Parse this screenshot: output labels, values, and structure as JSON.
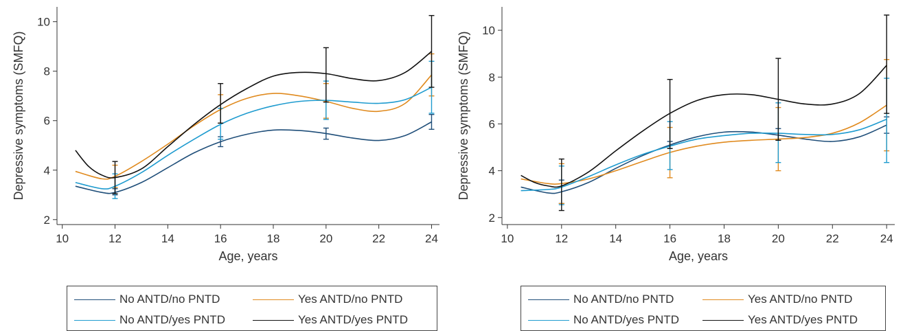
{
  "colors": {
    "no_antd_no_pntd": "#1f4e79",
    "yes_antd_no_pntd": "#e08a1e",
    "no_antd_yes_pntd": "#1e9bcf",
    "yes_antd_yes_pntd": "#111111",
    "axis": "#333333"
  },
  "legend": [
    {
      "label": "No ANTD/no PNTD",
      "color": "#1f4e79"
    },
    {
      "label": "Yes ANTD/no PNTD",
      "color": "#e08a1e"
    },
    {
      "label": "No ANTD/yes PNTD",
      "color": "#1e9bcf"
    },
    {
      "label": "Yes ANTD/yes PNTD",
      "color": "#111111"
    }
  ],
  "chart_data": [
    {
      "type": "line",
      "xlabel": "Age, years",
      "ylabel": "Depressive symptoms (SMFQ)",
      "xlim": [
        9.8,
        24.3
      ],
      "ylim": [
        1.8,
        10.6
      ],
      "xticks": [
        10,
        12,
        14,
        16,
        18,
        20,
        22,
        24
      ],
      "yticks": [
        2,
        4,
        6,
        8,
        10
      ],
      "grid": false,
      "legend_position": "bottom",
      "series": [
        {
          "name": "No ANTD/no PNTD",
          "color": "#1f4e79",
          "x": [
            10.5,
            11.5,
            12,
            13,
            14,
            15,
            16,
            17,
            18,
            19,
            20,
            21,
            22,
            23,
            24
          ],
          "y": [
            3.35,
            3.1,
            3.1,
            3.5,
            4.1,
            4.7,
            5.15,
            5.45,
            5.62,
            5.6,
            5.48,
            5.3,
            5.2,
            5.4,
            5.95
          ],
          "errorbars": [
            {
              "x": 12,
              "low": 3.0,
              "high": 3.25
            },
            {
              "x": 16,
              "low": 4.95,
              "high": 5.35
            },
            {
              "x": 20,
              "low": 5.25,
              "high": 5.7
            },
            {
              "x": 24,
              "low": 5.65,
              "high": 6.25
            }
          ]
        },
        {
          "name": "Yes ANTD/no PNTD",
          "color": "#e08a1e",
          "x": [
            10.5,
            11.5,
            12,
            13,
            14,
            15,
            16,
            17,
            18,
            19,
            20,
            21,
            22,
            23,
            24
          ],
          "y": [
            3.95,
            3.65,
            3.75,
            4.35,
            5.05,
            5.8,
            6.45,
            6.9,
            7.1,
            7.0,
            6.78,
            6.5,
            6.38,
            6.7,
            7.85
          ],
          "errorbars": [
            {
              "x": 12,
              "low": 3.3,
              "high": 4.2
            },
            {
              "x": 16,
              "low": 5.9,
              "high": 7.05
            },
            {
              "x": 20,
              "low": 6.1,
              "high": 7.5
            },
            {
              "x": 24,
              "low": 7.0,
              "high": 8.7
            }
          ]
        },
        {
          "name": "No ANTD/yes PNTD",
          "color": "#1e9bcf",
          "x": [
            10.5,
            11.5,
            12,
            13,
            14,
            15,
            16,
            17,
            18,
            19,
            20,
            21,
            22,
            23,
            24
          ],
          "y": [
            3.5,
            3.25,
            3.35,
            3.9,
            4.6,
            5.25,
            5.85,
            6.3,
            6.6,
            6.78,
            6.82,
            6.75,
            6.7,
            6.85,
            7.35
          ],
          "errorbars": [
            {
              "x": 12,
              "low": 2.85,
              "high": 3.85
            },
            {
              "x": 16,
              "low": 5.25,
              "high": 6.5
            },
            {
              "x": 20,
              "low": 6.05,
              "high": 7.6
            },
            {
              "x": 24,
              "low": 6.3,
              "high": 8.4
            }
          ]
        },
        {
          "name": "Yes ANTD/yes PNTD",
          "color": "#111111",
          "x": [
            10.5,
            11,
            11.5,
            12,
            13,
            14,
            15,
            16,
            17,
            18,
            19,
            20,
            21,
            22,
            23,
            24
          ],
          "y": [
            4.8,
            4.15,
            3.8,
            3.7,
            4.05,
            4.95,
            5.85,
            6.65,
            7.3,
            7.8,
            7.95,
            7.9,
            7.7,
            7.62,
            7.95,
            8.8
          ],
          "errorbars": [
            {
              "x": 12,
              "low": 3.05,
              "high": 4.35
            },
            {
              "x": 16,
              "low": 5.9,
              "high": 7.5
            },
            {
              "x": 20,
              "low": 6.75,
              "high": 8.95
            },
            {
              "x": 24,
              "low": 7.35,
              "high": 10.25
            }
          ]
        }
      ]
    },
    {
      "type": "line",
      "xlabel": "Age, years",
      "ylabel": "Depressive symptoms (SMFQ)",
      "xlim": [
        9.8,
        24.3
      ],
      "ylim": [
        1.7,
        11.0
      ],
      "xticks": [
        10,
        12,
        14,
        16,
        18,
        20,
        22,
        24
      ],
      "yticks": [
        2,
        4,
        6,
        8,
        10
      ],
      "grid": false,
      "legend_position": "bottom",
      "series": [
        {
          "name": "No ANTD/no PNTD",
          "color": "#1f4e79",
          "x": [
            10.5,
            11.5,
            12,
            13,
            14,
            15,
            16,
            17,
            18,
            19,
            20,
            21,
            22,
            23,
            24
          ],
          "y": [
            3.3,
            3.05,
            3.1,
            3.5,
            4.1,
            4.65,
            5.1,
            5.45,
            5.65,
            5.65,
            5.52,
            5.35,
            5.25,
            5.45,
            5.95
          ],
          "errorbars": [
            {
              "x": 12,
              "low": 2.6,
              "high": 3.6
            },
            {
              "x": 16,
              "low": 4.95,
              "high": 5.25
            },
            {
              "x": 20,
              "low": 5.3,
              "high": 5.8
            },
            {
              "x": 24,
              "low": 5.6,
              "high": 6.3
            }
          ]
        },
        {
          "name": "Yes ANTD/no PNTD",
          "color": "#e08a1e",
          "x": [
            10.5,
            11.5,
            12,
            13,
            14,
            15,
            16,
            17,
            18,
            19,
            20,
            21,
            22,
            23,
            24
          ],
          "y": [
            3.65,
            3.45,
            3.45,
            3.65,
            4.0,
            4.4,
            4.78,
            5.05,
            5.22,
            5.3,
            5.35,
            5.42,
            5.6,
            6.05,
            6.8
          ],
          "errorbars": [
            {
              "x": 12,
              "low": 2.6,
              "high": 4.3
            },
            {
              "x": 16,
              "low": 3.7,
              "high": 5.85
            },
            {
              "x": 20,
              "low": 4.0,
              "high": 6.7
            },
            {
              "x": 24,
              "low": 4.85,
              "high": 8.75
            }
          ]
        },
        {
          "name": "No ANTD/yes PNTD",
          "color": "#1e9bcf",
          "x": [
            10.5,
            11.5,
            12,
            13,
            14,
            15,
            16,
            17,
            18,
            19,
            20,
            21,
            22,
            23,
            24
          ],
          "y": [
            3.15,
            3.2,
            3.3,
            3.75,
            4.25,
            4.7,
            5.05,
            5.35,
            5.5,
            5.6,
            5.6,
            5.55,
            5.55,
            5.75,
            6.2
          ],
          "errorbars": [
            {
              "x": 12,
              "low": 2.55,
              "high": 4.2
            },
            {
              "x": 16,
              "low": 4.05,
              "high": 6.1
            },
            {
              "x": 20,
              "low": 4.35,
              "high": 6.9
            },
            {
              "x": 24,
              "low": 4.35,
              "high": 7.95
            }
          ]
        },
        {
          "name": "Yes ANTD/yes PNTD",
          "color": "#111111",
          "x": [
            10.5,
            11,
            11.5,
            12,
            13,
            14,
            15,
            16,
            17,
            18,
            19,
            20,
            21,
            22,
            23,
            24
          ],
          "y": [
            3.8,
            3.5,
            3.35,
            3.35,
            3.95,
            4.85,
            5.7,
            6.45,
            7.0,
            7.25,
            7.25,
            7.05,
            6.85,
            6.85,
            7.3,
            8.5
          ],
          "errorbars": [
            {
              "x": 12,
              "low": 2.3,
              "high": 4.5
            },
            {
              "x": 16,
              "low": 4.95,
              "high": 7.9
            },
            {
              "x": 20,
              "low": 5.3,
              "high": 8.8
            },
            {
              "x": 24,
              "low": 6.45,
              "high": 10.65
            }
          ]
        }
      ]
    }
  ]
}
